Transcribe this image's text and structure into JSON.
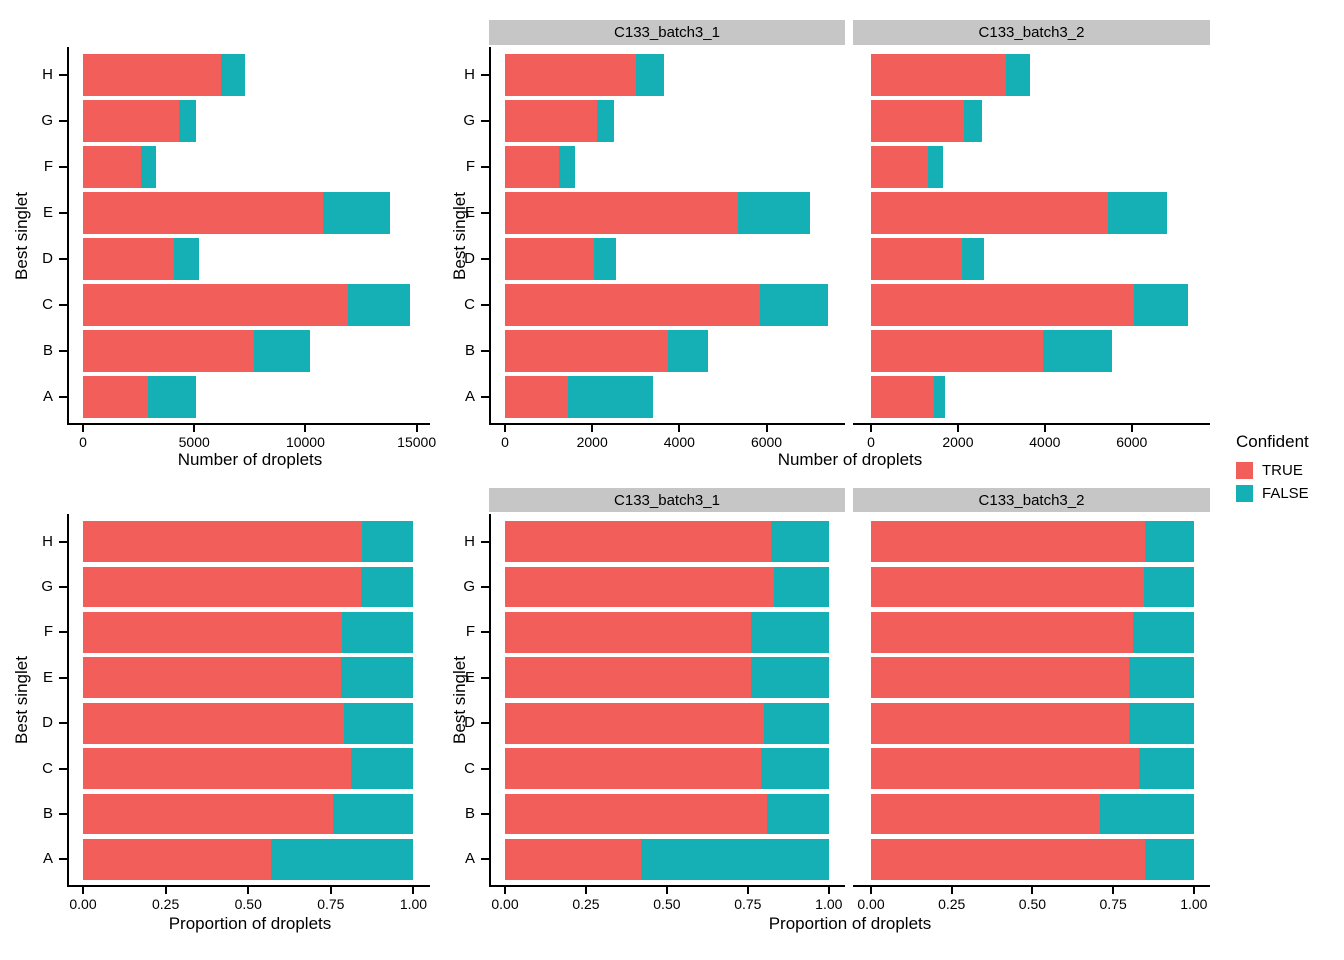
{
  "legend": {
    "title": "Confident",
    "items": [
      {
        "label": "TRUE",
        "color": "#F25F5B"
      },
      {
        "label": "FALSE",
        "color": "#14B0B5"
      }
    ]
  },
  "ylabel": "Best singlet",
  "colors": {
    "true_fill": "#F25F5B",
    "false_fill": "#14B0B5",
    "strip_background": "#C6C6C6",
    "axis": "#000000"
  },
  "chart_data": [
    {
      "id": "counts-overall",
      "type": "bar",
      "orientation": "horizontal",
      "stacked": true,
      "facet": null,
      "xlabel": "Number of droplets",
      "ylabel": "Best singlet",
      "legend_title": "Confident",
      "categories": [
        "A",
        "B",
        "C",
        "D",
        "E",
        "F",
        "G",
        "H"
      ],
      "series": [
        {
          "name": "TRUE",
          "values": [
            2900,
            7700,
            11900,
            4100,
            10800,
            2600,
            4300,
            6200
          ]
        },
        {
          "name": "FALSE",
          "values": [
            2200,
            2500,
            2800,
            1100,
            3000,
            700,
            800,
            1100
          ]
        }
      ],
      "x_ticks": [
        0,
        5000,
        10000,
        15000
      ],
      "x_tick_labels": [
        "0",
        "5000",
        "10000",
        "15000"
      ],
      "xlim": [
        0,
        15600
      ],
      "grid": false
    },
    {
      "id": "counts-batch1",
      "type": "bar",
      "orientation": "horizontal",
      "stacked": true,
      "facet": "C133_batch3_1",
      "xlabel": "Number of droplets",
      "ylabel": "Best singlet",
      "legend_title": "Confident",
      "categories": [
        "A",
        "B",
        "C",
        "D",
        "E",
        "F",
        "G",
        "H"
      ],
      "series": [
        {
          "name": "TRUE",
          "values": [
            1450,
            3750,
            5850,
            2050,
            5350,
            1250,
            2100,
            3000
          ]
        },
        {
          "name": "FALSE",
          "values": [
            1950,
            900,
            1550,
            500,
            1650,
            350,
            400,
            650
          ]
        }
      ],
      "x_ticks": [
        0,
        2000,
        4000,
        6000
      ],
      "x_tick_labels": [
        "0",
        "2000",
        "4000",
        "6000"
      ],
      "xlim": [
        0,
        7800
      ],
      "grid": false
    },
    {
      "id": "counts-batch2",
      "type": "bar",
      "orientation": "horizontal",
      "stacked": true,
      "facet": "C133_batch3_2",
      "xlabel": "Number of droplets",
      "ylabel": "Best singlet",
      "legend_title": "Confident",
      "categories": [
        "A",
        "B",
        "C",
        "D",
        "E",
        "F",
        "G",
        "H"
      ],
      "series": [
        {
          "name": "TRUE",
          "values": [
            1450,
            3950,
            6050,
            2100,
            5450,
            1300,
            2150,
            3100
          ]
        },
        {
          "name": "FALSE",
          "values": [
            250,
            1600,
            1250,
            500,
            1350,
            350,
            400,
            550
          ]
        }
      ],
      "x_ticks": [
        0,
        2000,
        4000,
        6000
      ],
      "x_tick_labels": [
        "0",
        "2000",
        "4000",
        "6000"
      ],
      "xlim": [
        0,
        7800
      ],
      "grid": false
    },
    {
      "id": "proportion-overall",
      "type": "bar",
      "orientation": "horizontal",
      "stacked": true,
      "facet": null,
      "xlabel": "Proportion of droplets",
      "ylabel": "Best singlet",
      "legend_title": "Confident",
      "categories": [
        "A",
        "B",
        "C",
        "D",
        "E",
        "F",
        "G",
        "H"
      ],
      "series": [
        {
          "name": "TRUE",
          "values": [
            0.57,
            0.755,
            0.81,
            0.79,
            0.78,
            0.785,
            0.84,
            0.845
          ]
        },
        {
          "name": "FALSE",
          "values": [
            0.43,
            0.245,
            0.19,
            0.21,
            0.22,
            0.215,
            0.16,
            0.155
          ]
        }
      ],
      "x_ticks": [
        0,
        0.25,
        0.5,
        0.75,
        1.0
      ],
      "x_tick_labels": [
        "0.00",
        "0.25",
        "0.50",
        "0.75",
        "1.00"
      ],
      "xlim": [
        0,
        1.05
      ],
      "grid": false
    },
    {
      "id": "proportion-batch1",
      "type": "bar",
      "orientation": "horizontal",
      "stacked": true,
      "facet": "C133_batch3_1",
      "xlabel": "Proportion of droplets",
      "ylabel": "Best singlet",
      "legend_title": "Confident",
      "categories": [
        "A",
        "B",
        "C",
        "D",
        "E",
        "F",
        "G",
        "H"
      ],
      "series": [
        {
          "name": "TRUE",
          "values": [
            0.42,
            0.81,
            0.79,
            0.8,
            0.76,
            0.76,
            0.83,
            0.82
          ]
        },
        {
          "name": "FALSE",
          "values": [
            0.58,
            0.19,
            0.21,
            0.2,
            0.24,
            0.24,
            0.17,
            0.18
          ]
        }
      ],
      "x_ticks": [
        0,
        0.25,
        0.5,
        0.75,
        1.0
      ],
      "x_tick_labels": [
        "0.00",
        "0.25",
        "0.50",
        "0.75",
        "1.00"
      ],
      "xlim": [
        0,
        1.05
      ],
      "grid": false
    },
    {
      "id": "proportion-batch2",
      "type": "bar",
      "orientation": "horizontal",
      "stacked": true,
      "facet": "C133_batch3_2",
      "xlabel": "Proportion of droplets",
      "ylabel": "Best singlet",
      "legend_title": "Confident",
      "categories": [
        "A",
        "B",
        "C",
        "D",
        "E",
        "F",
        "G",
        "H"
      ],
      "series": [
        {
          "name": "TRUE",
          "values": [
            0.85,
            0.71,
            0.83,
            0.8,
            0.8,
            0.81,
            0.845,
            0.85
          ]
        },
        {
          "name": "FALSE",
          "values": [
            0.15,
            0.29,
            0.17,
            0.2,
            0.2,
            0.19,
            0.155,
            0.15
          ]
        }
      ],
      "x_ticks": [
        0,
        0.25,
        0.5,
        0.75,
        1.0
      ],
      "x_tick_labels": [
        "0.00",
        "0.25",
        "0.50",
        "0.75",
        "1.00"
      ],
      "xlim": [
        0,
        1.05
      ],
      "grid": false
    }
  ]
}
